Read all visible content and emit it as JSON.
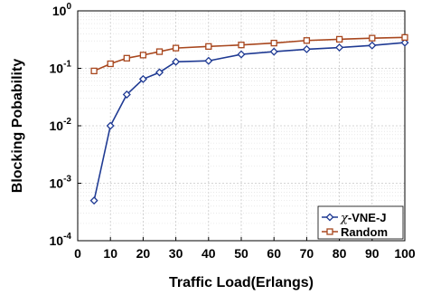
{
  "chart_data": {
    "type": "line",
    "xlabel": "Traffic Load(Erlangs)",
    "ylabel": "Blocking Pobability",
    "y_scale": "log",
    "xlim": [
      0,
      100
    ],
    "ylim": [
      0.0001,
      1
    ],
    "grid": true,
    "x_ticks": [
      0,
      10,
      20,
      30,
      40,
      50,
      60,
      70,
      80,
      90,
      100
    ],
    "y_ticks": [
      {
        "value": 0.0001,
        "base": "10",
        "exp": "-4"
      },
      {
        "value": 0.001,
        "base": "10",
        "exp": "-3"
      },
      {
        "value": 0.01,
        "base": "10",
        "exp": "-2"
      },
      {
        "value": 0.1,
        "base": "10",
        "exp": "-1"
      },
      {
        "value": 1,
        "base": "10",
        "exp": "0"
      }
    ],
    "legend_position": "bottom-right",
    "series": [
      {
        "name_prefix": "χ",
        "name": "-VNE-J",
        "color": "#1f3a93",
        "marker": "diamond",
        "x": [
          5,
          10,
          15,
          20,
          25,
          30,
          40,
          50,
          60,
          70,
          80,
          90,
          100
        ],
        "values": [
          0.0005,
          0.01,
          0.035,
          0.065,
          0.085,
          0.13,
          0.135,
          0.175,
          0.195,
          0.215,
          0.23,
          0.25,
          0.28
        ]
      },
      {
        "name": "Random",
        "color": "#a8471e",
        "marker": "square",
        "x": [
          5,
          10,
          15,
          20,
          25,
          30,
          40,
          50,
          60,
          70,
          80,
          90,
          100
        ],
        "values": [
          0.09,
          0.12,
          0.15,
          0.17,
          0.195,
          0.225,
          0.24,
          0.255,
          0.275,
          0.305,
          0.32,
          0.335,
          0.345
        ]
      }
    ]
  }
}
